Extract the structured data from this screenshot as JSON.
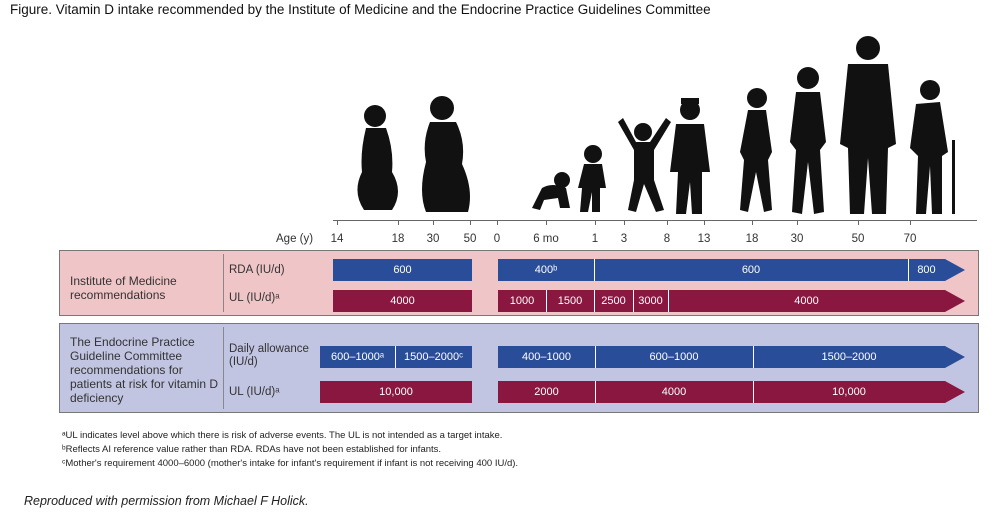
{
  "title": "Figure. Vitamin D intake recommended by the Institute of Medicine and the Endocrine Practice Guidelines Committee",
  "axis": {
    "label": "Age (y)",
    "ticks": [
      "14",
      "18",
      "30",
      "50",
      "0",
      "6 mo",
      "1",
      "3",
      "8",
      "13",
      "18",
      "30",
      "50",
      "70"
    ]
  },
  "groups": [
    {
      "label": "Institute of Medicine recommendations",
      "rows": [
        {
          "label": "RDA (IU/d)",
          "color": "#2a4d9a",
          "segments": [
            {
              "text": "600"
            },
            {
              "text": "400ᵇ"
            },
            {
              "text": "600"
            },
            {
              "text": "800"
            }
          ]
        },
        {
          "label": "UL (IU/d)ᵃ",
          "color": "#8a1740",
          "segments": [
            {
              "text": "4000"
            },
            {
              "text": "1000"
            },
            {
              "text": "1500"
            },
            {
              "text": "2500"
            },
            {
              "text": "3000"
            },
            {
              "text": "4000"
            }
          ]
        }
      ]
    },
    {
      "label": "The Endocrine Practice Guideline Committee recommendations for patients at risk for vitamin D deficiency",
      "rows": [
        {
          "label": "Daily allowance (IU/d)",
          "color": "#2a4d9a",
          "segments": [
            {
              "text": "600–1000ᵃ"
            },
            {
              "text": "1500–2000ᶜ"
            },
            {
              "text": "400–1000"
            },
            {
              "text": "600–1000"
            },
            {
              "text": "1500–2000"
            }
          ]
        },
        {
          "label": "UL (IU/d)ᵃ",
          "color": "#8a1740",
          "segments": [
            {
              "text": "10,000"
            },
            {
              "text": "2000"
            },
            {
              "text": "4000"
            },
            {
              "text": "10,000"
            }
          ]
        }
      ]
    }
  ],
  "footnotes": [
    "ᵃUL indicates level above which there is risk of adverse events. The UL is not intended as a target intake.",
    "ᵇReflects AI reference value rather than RDA. RDAs have not been established for infants.",
    "ᶜMother's requirement 4000–6000 (mother's intake for infant's requirement if infant is not receiving 400 IU/d)."
  ],
  "credit": "Reproduced with permission from Michael F Holick.",
  "silhouettes": [
    "pregnant-woman-icon",
    "breastfeeding-mother-icon",
    "crawling-baby-icon",
    "toddler-icon",
    "child-jumping-icon",
    "teen-boy-icon",
    "girl-walking-icon",
    "woman-icon",
    "man-icon",
    "elderly-man-with-cane-icon"
  ]
}
